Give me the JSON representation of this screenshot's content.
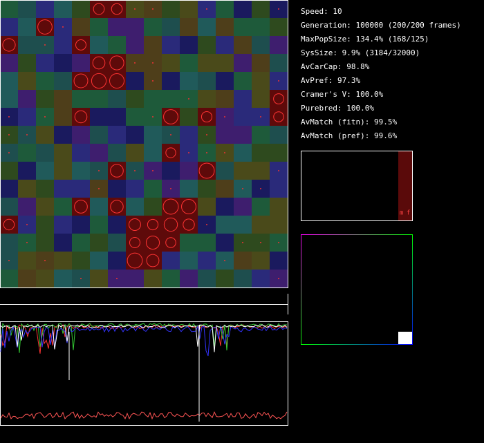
{
  "stats": [
    "Speed: 10",
    "Generation: 100000 (200/200 frames)",
    "MaxPopSize: 134.4% (168/125)",
    "SysSize: 9.9% (3184/32000)",
    "AvCarCap: 98.8%",
    "AvPref: 97.3%",
    "Cramer's V: 100.0%",
    "Purebred: 100.0%",
    "AvMatch (fitn): 99.5%",
    "AvMatch (pref): 99.6%"
  ],
  "legend_box": {
    "labels": [
      "m",
      "f"
    ]
  }
}
